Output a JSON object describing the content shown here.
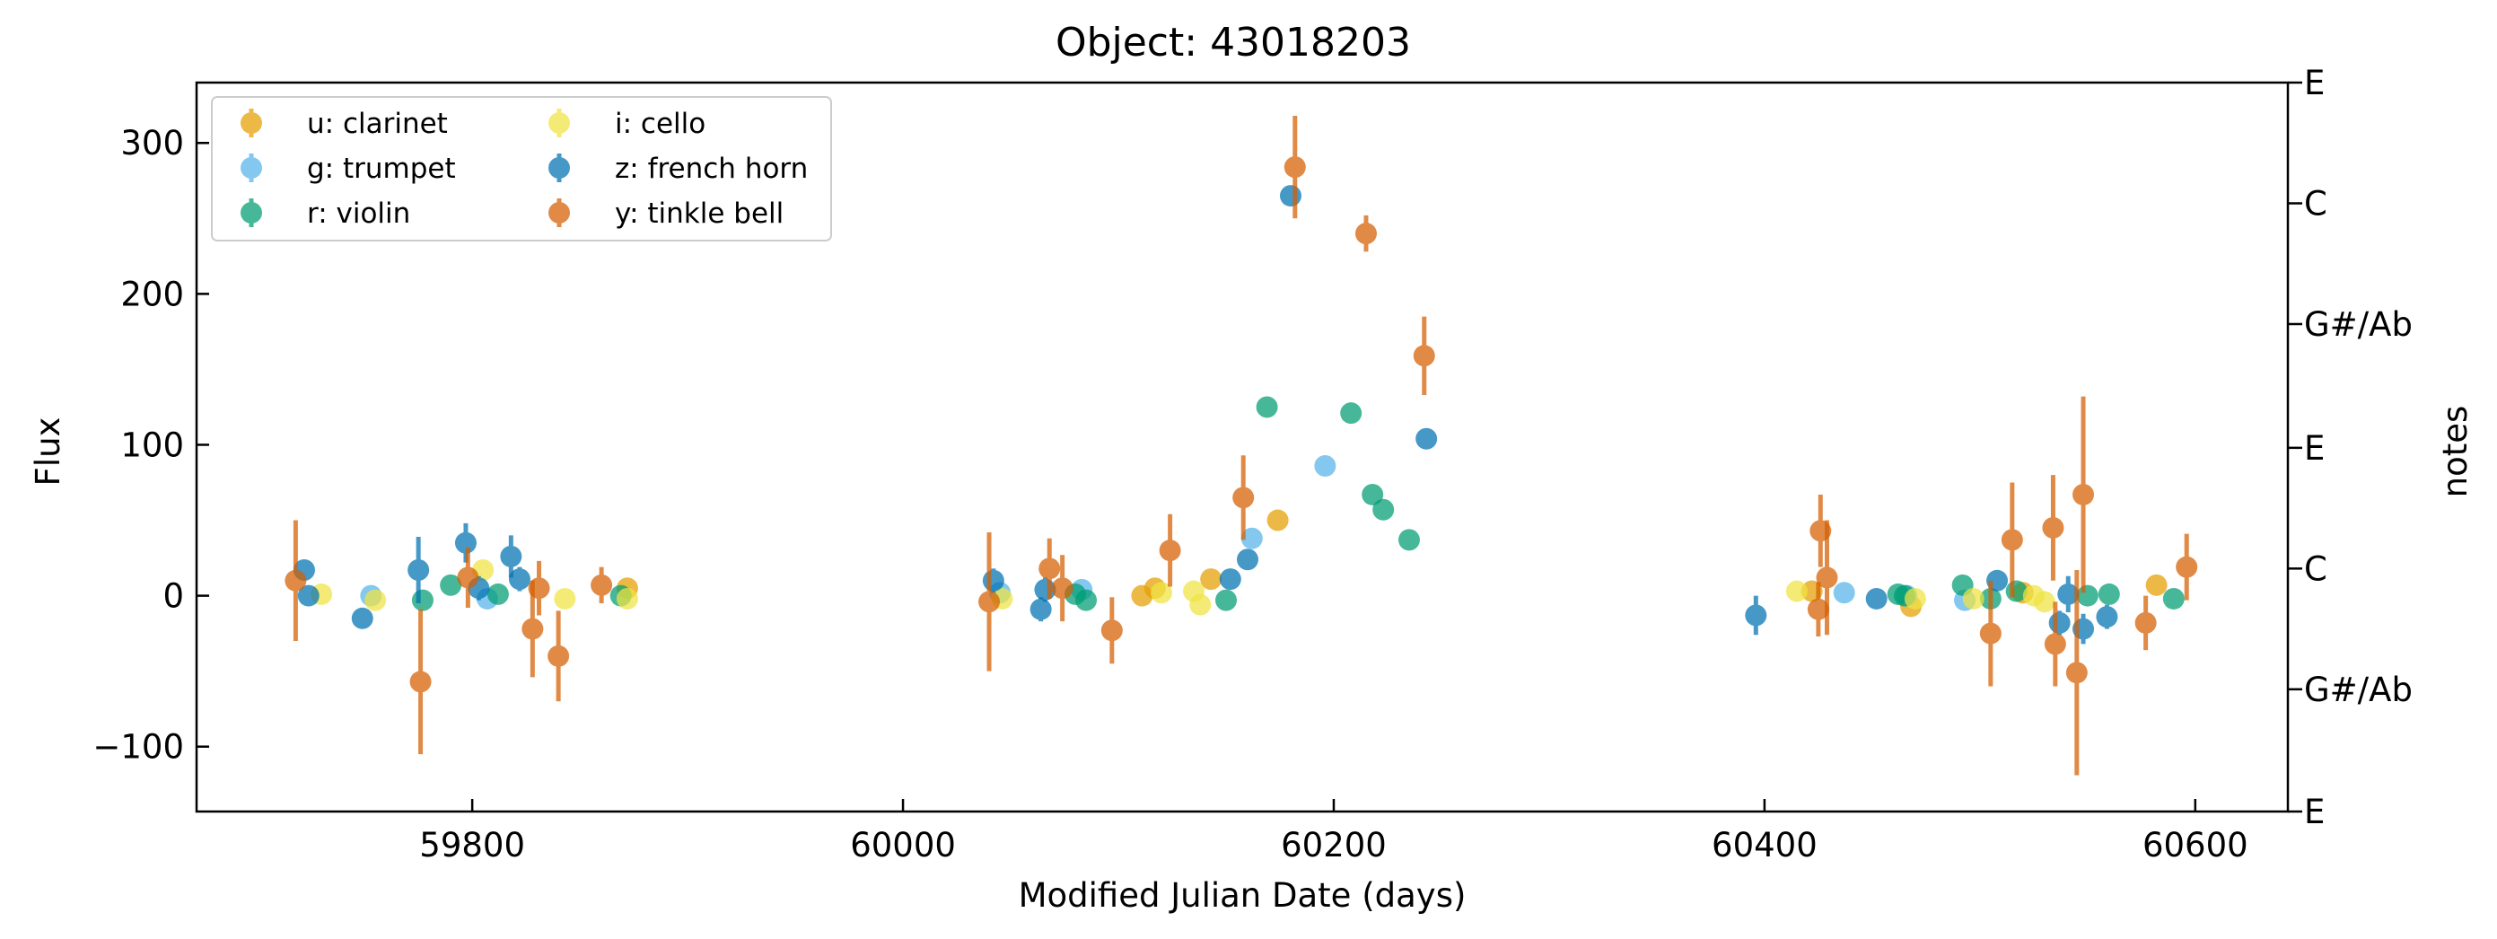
{
  "chart_data": {
    "type": "scatter",
    "title": "Object: 43018203",
    "xlabel": "Modified Julian Date (days)",
    "ylabel": "Flux",
    "y2label": "notes",
    "xlim": [
      59672,
      60643
    ],
    "ylim": [
      -143,
      340
    ],
    "xticks": [
      59800,
      60000,
      60200,
      60400,
      60600
    ],
    "yticks": [
      -100,
      0,
      100,
      200,
      300
    ],
    "ytick_labels": [
      "−100",
      "0",
      "100",
      "200",
      "300"
    ],
    "y2ticks": [
      {
        "y": 340,
        "label": "E"
      },
      {
        "y": 260,
        "label": "C"
      },
      {
        "y": 180,
        "label": "G#/Ab"
      },
      {
        "y": 98,
        "label": "E"
      },
      {
        "y": 18,
        "label": "C"
      },
      {
        "y": -62,
        "label": "G#/Ab"
      },
      {
        "y": -143,
        "label": "E"
      }
    ],
    "grid": false,
    "legend_position": "top-left",
    "series": [
      {
        "name": "u: clarinet",
        "color": "#E69F00",
        "points": [
          {
            "x": 59872,
            "y": 5,
            "e": 3
          },
          {
            "x": 60111,
            "y": 0,
            "e": 3
          },
          {
            "x": 60117,
            "y": 5,
            "e": 3
          },
          {
            "x": 60143,
            "y": 11,
            "e": 3
          },
          {
            "x": 60174,
            "y": 50,
            "e": 4
          },
          {
            "x": 60422,
            "y": 3,
            "e": 3
          },
          {
            "x": 60468,
            "y": -7,
            "e": 5
          },
          {
            "x": 60520,
            "y": 2,
            "e": 3
          },
          {
            "x": 60582,
            "y": 7,
            "e": 3
          }
        ]
      },
      {
        "name": "g: trumpet",
        "color": "#56B4E9",
        "points": [
          {
            "x": 59753,
            "y": 0,
            "e": 2
          },
          {
            "x": 59807,
            "y": -2,
            "e": 3
          },
          {
            "x": 60045,
            "y": 2,
            "e": 2
          },
          {
            "x": 60083,
            "y": 4,
            "e": 2
          },
          {
            "x": 60162,
            "y": 38,
            "e": 3
          },
          {
            "x": 60196,
            "y": 86,
            "e": 3
          },
          {
            "x": 60437,
            "y": 2,
            "e": 2
          },
          {
            "x": 60466,
            "y": 0,
            "e": 2
          },
          {
            "x": 60493,
            "y": -3,
            "e": 2
          }
        ]
      },
      {
        "name": "r: violin",
        "color": "#009E73",
        "points": [
          {
            "x": 59777,
            "y": -3,
            "e": 3
          },
          {
            "x": 59790,
            "y": 7,
            "e": 3
          },
          {
            "x": 59812,
            "y": 1,
            "e": 3
          },
          {
            "x": 59869,
            "y": 0,
            "e": 3
          },
          {
            "x": 60080,
            "y": 1,
            "e": 3
          },
          {
            "x": 60085,
            "y": -3,
            "e": 3
          },
          {
            "x": 60150,
            "y": -3,
            "e": 3
          },
          {
            "x": 60169,
            "y": 125,
            "e": 4
          },
          {
            "x": 60208,
            "y": 121,
            "e": 4
          },
          {
            "x": 60218,
            "y": 67,
            "e": 4
          },
          {
            "x": 60223,
            "y": 57,
            "e": 4
          },
          {
            "x": 60235,
            "y": 37,
            "e": 3
          },
          {
            "x": 60462,
            "y": 1,
            "e": 3
          },
          {
            "x": 60465,
            "y": 0,
            "e": 3
          },
          {
            "x": 60492,
            "y": 7,
            "e": 3
          },
          {
            "x": 60505,
            "y": -2,
            "e": 3
          },
          {
            "x": 60517,
            "y": 3,
            "e": 3
          },
          {
            "x": 60550,
            "y": 0,
            "e": 3
          },
          {
            "x": 60560,
            "y": 1,
            "e": 3
          },
          {
            "x": 60590,
            "y": -2,
            "e": 3
          }
        ]
      },
      {
        "name": "i: cello",
        "color": "#F0E442",
        "points": [
          {
            "x": 59730,
            "y": 1,
            "e": 3
          },
          {
            "x": 59755,
            "y": -3,
            "e": 3
          },
          {
            "x": 59805,
            "y": 17,
            "e": 5
          },
          {
            "x": 59843,
            "y": -2,
            "e": 3
          },
          {
            "x": 59872,
            "y": -2,
            "e": 3
          },
          {
            "x": 60046,
            "y": -2,
            "e": 3
          },
          {
            "x": 60120,
            "y": 2,
            "e": 3
          },
          {
            "x": 60135,
            "y": 3,
            "e": 3
          },
          {
            "x": 60138,
            "y": -6,
            "e": 3
          },
          {
            "x": 60415,
            "y": 3,
            "e": 3
          },
          {
            "x": 60470,
            "y": -2,
            "e": 3
          },
          {
            "x": 60497,
            "y": -2,
            "e": 3
          },
          {
            "x": 60525,
            "y": 0,
            "e": 3
          },
          {
            "x": 60530,
            "y": -4,
            "e": 3
          }
        ]
      },
      {
        "name": "z: french horn",
        "color": "#0072B2",
        "points": [
          {
            "x": 59722,
            "y": 17,
            "e": 6
          },
          {
            "x": 59724,
            "y": 0,
            "e": 6
          },
          {
            "x": 59749,
            "y": -15,
            "e": 5
          },
          {
            "x": 59775,
            "y": 17,
            "e": 22
          },
          {
            "x": 59797,
            "y": 35,
            "e": 13
          },
          {
            "x": 59803,
            "y": 5,
            "e": 8
          },
          {
            "x": 59818,
            "y": 26,
            "e": 14
          },
          {
            "x": 59822,
            "y": 11,
            "e": 8
          },
          {
            "x": 60042,
            "y": 10,
            "e": 8
          },
          {
            "x": 60064,
            "y": -9,
            "e": 8
          },
          {
            "x": 60066,
            "y": 4,
            "e": 8
          },
          {
            "x": 60152,
            "y": 11,
            "e": 6
          },
          {
            "x": 60160,
            "y": 24,
            "e": 6
          },
          {
            "x": 60180,
            "y": 265,
            "e": 6
          },
          {
            "x": 60243,
            "y": 104,
            "e": 4
          },
          {
            "x": 60396,
            "y": -13,
            "e": 13
          },
          {
            "x": 60452,
            "y": -2,
            "e": 6
          },
          {
            "x": 60508,
            "y": 10,
            "e": 6
          },
          {
            "x": 60537,
            "y": -18,
            "e": 8
          },
          {
            "x": 60541,
            "y": 1,
            "e": 12
          },
          {
            "x": 60548,
            "y": -22,
            "e": 10
          },
          {
            "x": 60559,
            "y": -14,
            "e": 8
          }
        ]
      },
      {
        "name": "y: tinkle bell",
        "color": "#D55E00",
        "points": [
          {
            "x": 59718,
            "y": 10,
            "e": 40
          },
          {
            "x": 59776,
            "y": -57,
            "e": 48
          },
          {
            "x": 59798,
            "y": 12,
            "e": 20
          },
          {
            "x": 59828,
            "y": -22,
            "e": 32
          },
          {
            "x": 59831,
            "y": 5,
            "e": 18
          },
          {
            "x": 59840,
            "y": -40,
            "e": 30
          },
          {
            "x": 59860,
            "y": 7,
            "e": 12
          },
          {
            "x": 60040,
            "y": -4,
            "e": 46
          },
          {
            "x": 60068,
            "y": 18,
            "e": 20
          },
          {
            "x": 60074,
            "y": 5,
            "e": 22
          },
          {
            "x": 60097,
            "y": -23,
            "e": 22
          },
          {
            "x": 60124,
            "y": 30,
            "e": 24
          },
          {
            "x": 60158,
            "y": 65,
            "e": 28
          },
          {
            "x": 60182,
            "y": 284,
            "e": 34
          },
          {
            "x": 60215,
            "y": 240,
            "e": 12
          },
          {
            "x": 60242,
            "y": 159,
            "e": 26
          },
          {
            "x": 60425,
            "y": -9,
            "e": 18
          },
          {
            "x": 60426,
            "y": 43,
            "e": 24
          },
          {
            "x": 60429,
            "y": 12,
            "e": 38
          },
          {
            "x": 60505,
            "y": -25,
            "e": 35
          },
          {
            "x": 60515,
            "y": 37,
            "e": 38
          },
          {
            "x": 60534,
            "y": 45,
            "e": 35
          },
          {
            "x": 60535,
            "y": -32,
            "e": 28
          },
          {
            "x": 60545,
            "y": -51,
            "e": 68
          },
          {
            "x": 60548,
            "y": 67,
            "e": 65
          },
          {
            "x": 60577,
            "y": -18,
            "e": 18
          },
          {
            "x": 60596,
            "y": 19,
            "e": 22
          }
        ]
      }
    ]
  }
}
